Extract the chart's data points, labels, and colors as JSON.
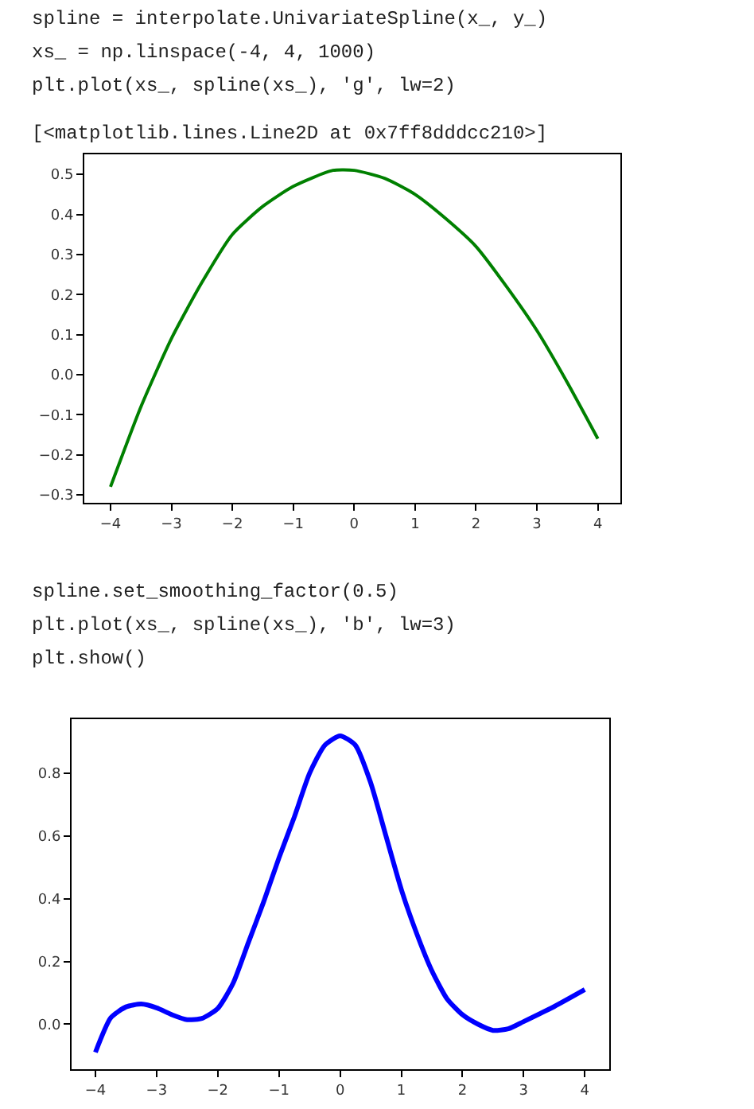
{
  "chart_data": [
    {
      "type": "line",
      "annotations": [
        "spline = interpolate.UnivariateSpline(x_, y_)",
        "xs_ = np.linspace(-4, 4, 1000)",
        "plt.plot(xs_, spline(xs_), 'g', lw=2)",
        "[<matplotlib.lines.Line2D at 0x7ff8dddcc210>]"
      ],
      "x": [
        -4,
        -3.5,
        -3,
        -2.5,
        -2,
        -1.5,
        -1,
        -0.35,
        0,
        0.5,
        1,
        1.5,
        2,
        2.5,
        3,
        3.5,
        4
      ],
      "series": [
        {
          "color": "#008000",
          "values": [
            -0.28,
            -0.08,
            0.09,
            0.23,
            0.35,
            0.42,
            0.47,
            0.51,
            0.51,
            0.49,
            0.45,
            0.39,
            0.32,
            0.22,
            0.11,
            -0.02,
            -0.16
          ]
        }
      ],
      "xlim": [
        -4.43,
        4.37
      ],
      "ylim": [
        -0.32,
        0.55
      ],
      "xticks": [
        {
          "value": -4,
          "label": "−4"
        },
        {
          "value": -3,
          "label": "−3"
        },
        {
          "value": -2,
          "label": "−2"
        },
        {
          "value": -1,
          "label": "−1"
        },
        0,
        1,
        2,
        3,
        4
      ],
      "yticks": [
        {
          "value": -0.3,
          "label": "−0.3"
        },
        {
          "value": -0.2,
          "label": "−0.2"
        },
        {
          "value": -0.1,
          "label": "−0.1"
        },
        {
          "value": 0,
          "label": "0.0"
        },
        0.1,
        0.2,
        0.3,
        0.4,
        0.5
      ],
      "marker": "none",
      "line_style": "solid"
    },
    {
      "type": "line",
      "annotations": [
        "spline.set_smoothing_factor(0.5)",
        "plt.plot(xs_, spline(xs_), 'b', lw=3)",
        "plt.show()"
      ],
      "x": [
        -4,
        -3.75,
        -3.5,
        -3.25,
        -3,
        -2.75,
        -2.5,
        -2.25,
        -2,
        -1.75,
        -1.5,
        -1.25,
        -1,
        -0.75,
        -0.5,
        -0.25,
        0,
        0.25,
        0.5,
        0.75,
        1,
        1.25,
        1.5,
        1.75,
        2,
        2.25,
        2.5,
        2.75,
        3,
        3.5,
        4
      ],
      "series": [
        {
          "color": "#0000ff",
          "values": [
            -0.09,
            0.02,
            0.055,
            0.064,
            0.052,
            0.03,
            0.014,
            0.019,
            0.05,
            0.13,
            0.26,
            0.39,
            0.53,
            0.66,
            0.8,
            0.89,
            0.92,
            0.89,
            0.77,
            0.6,
            0.43,
            0.29,
            0.17,
            0.08,
            0.03,
            0.0,
            -0.02,
            -0.015,
            0.008,
            0.056,
            0.11
          ]
        }
      ],
      "xlim": [
        -4.39,
        4.4
      ],
      "ylim": [
        -0.144,
        0.973
      ],
      "xticks": [
        {
          "value": -4,
          "label": "−4"
        },
        {
          "value": -3,
          "label": "−3"
        },
        {
          "value": -2,
          "label": "−2"
        },
        {
          "value": -1,
          "label": "−1"
        },
        0,
        1,
        2,
        3,
        4
      ],
      "yticks": [
        {
          "value": 0,
          "label": "0.0"
        },
        0.2,
        0.4,
        0.6,
        0.8
      ],
      "marker": "none",
      "line_style": "solid"
    }
  ]
}
